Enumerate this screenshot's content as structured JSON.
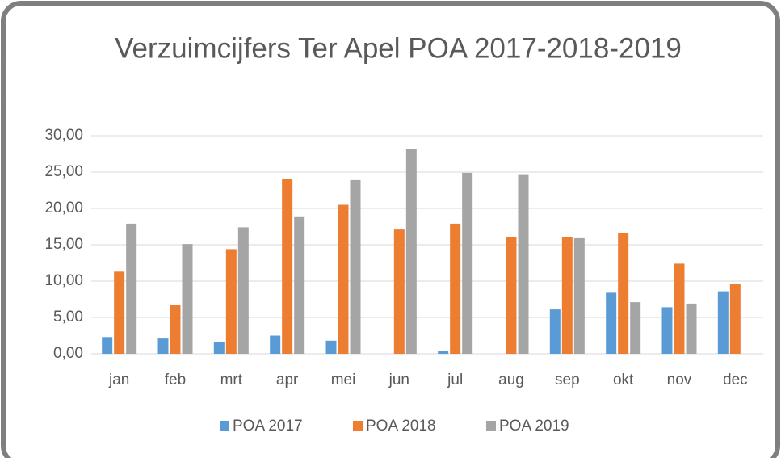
{
  "chart_data": {
    "type": "bar",
    "title": "Verzuimcijfers Ter Apel POA 2017-2018-2019",
    "categories": [
      "jan",
      "feb",
      "mrt",
      "apr",
      "mei",
      "jun",
      "jul",
      "aug",
      "sep",
      "okt",
      "nov",
      "dec"
    ],
    "series": [
      {
        "name": "POA 2017",
        "color": "#5b9bd5",
        "values": [
          2.3,
          2.1,
          1.6,
          2.5,
          1.8,
          null,
          0.4,
          null,
          6.1,
          8.4,
          6.4,
          8.6
        ]
      },
      {
        "name": "POA 2018",
        "color": "#ed7d31",
        "values": [
          11.3,
          6.7,
          14.4,
          24.1,
          20.5,
          17.1,
          17.9,
          16.1,
          16.1,
          16.6,
          12.4,
          9.6
        ]
      },
      {
        "name": "POA 2019",
        "color": "#a5a5a5",
        "values": [
          17.9,
          15.1,
          17.4,
          18.8,
          23.9,
          28.2,
          24.9,
          24.6,
          15.9,
          7.1,
          6.9,
          null
        ]
      }
    ],
    "ylim": [
      0,
      30
    ],
    "yticks": [
      {
        "value": 0,
        "label": "0,00"
      },
      {
        "value": 5,
        "label": "5,00"
      },
      {
        "value": 10,
        "label": "10,00"
      },
      {
        "value": 15,
        "label": "15,00"
      },
      {
        "value": 20,
        "label": "20,00"
      },
      {
        "value": 25,
        "label": "25,00"
      },
      {
        "value": 30,
        "label": "30,00"
      }
    ],
    "grid": true,
    "legend": "bottom"
  }
}
